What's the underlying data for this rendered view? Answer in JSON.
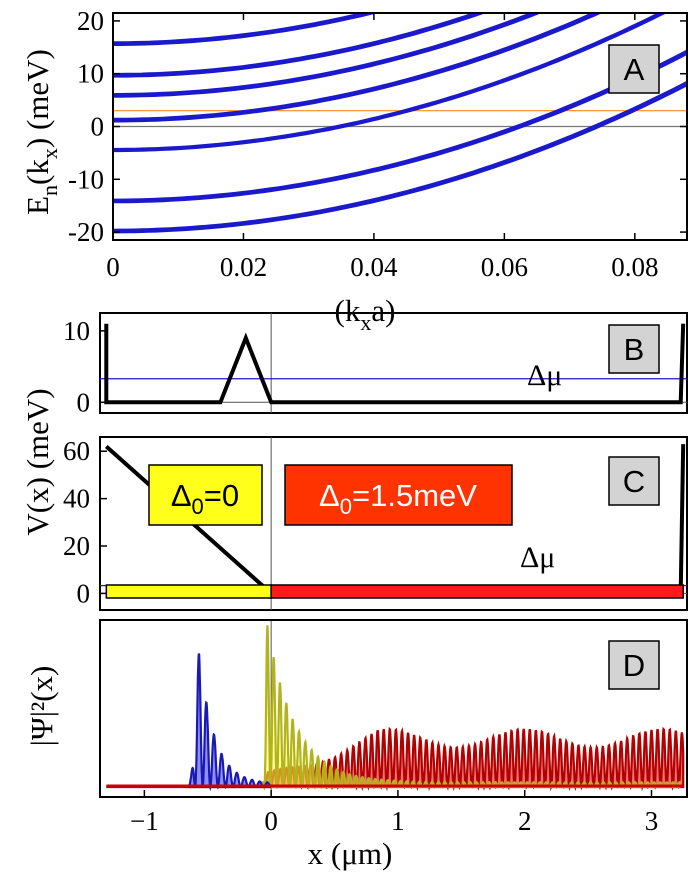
{
  "chart_data": [
    {
      "panel": "A",
      "type": "line",
      "xlabel_main": "(k",
      "xlabel_sub": "x",
      "xlabel_end": "a)",
      "ylabel_main": "E",
      "ylabel_sub1": "n",
      "ylabel_mid": "(k",
      "ylabel_sub2": "x",
      "ylabel_end": ")  (meV)",
      "xlim": [
        0,
        0.088
      ],
      "ylim": [
        -21.5,
        21.5
      ],
      "xticks": [
        0,
        0.02,
        0.04,
        0.06,
        0.08
      ],
      "xtick_labels": [
        "0",
        "0.02",
        "0.04",
        "0.06",
        "0.08"
      ],
      "yticks": [
        -20,
        -10,
        0,
        10,
        20
      ],
      "ytick_labels": [
        "-20",
        "-10",
        "0",
        "10",
        "20"
      ],
      "series_color": "#1a1acc",
      "band_offsets": [
        -20.0,
        -19.6,
        -14.3,
        -13.9,
        -4.6,
        -4.3,
        1.0,
        1.4,
        5.7,
        6.1,
        9.5,
        9.9,
        15.5,
        15.9
      ],
      "band_curvature": 3600,
      "horizontal_lines": [
        {
          "y": 3.0,
          "color": "#ff8c1a"
        },
        {
          "y": 0.0,
          "color": "#777777"
        }
      ]
    },
    {
      "panel": "B",
      "type": "line",
      "xlim": [
        -1.35,
        3.28
      ],
      "ylim": [
        -1.5,
        12.5
      ],
      "yticks": [
        0,
        10
      ],
      "ytick_labels": [
        "0",
        "10"
      ],
      "potential": [
        [
          -1.3,
          11
        ],
        [
          -1.3,
          0
        ],
        [
          -0.4,
          0
        ],
        [
          -0.2,
          9
        ],
        [
          0.0,
          0
        ],
        [
          3.23,
          0
        ],
        [
          3.25,
          11
        ]
      ],
      "delta_mu": 3.3,
      "delta_mu_label": "Δμ"
    },
    {
      "panel": "C",
      "type": "line",
      "ylabel": "V(x)  (meV)",
      "xlim": [
        -1.35,
        3.28
      ],
      "ylim": [
        -7,
        66
      ],
      "yticks": [
        0,
        20,
        40,
        60
      ],
      "ytick_labels": [
        "0",
        "20",
        "40",
        "60"
      ],
      "potential": [
        [
          -1.3,
          62
        ],
        [
          0.0,
          0
        ],
        [
          3.23,
          0
        ],
        [
          3.25,
          63
        ]
      ],
      "delta_mu": 3.3,
      "delta_mu_label": "Δμ",
      "regions": [
        {
          "x0": -1.3,
          "x1": 0.0,
          "color": "#ffff1a",
          "label_main": "Δ",
          "label_sub": "0",
          "label_end": "=0"
        },
        {
          "x0": 0.0,
          "x1": 3.25,
          "color": "#ff1a1a",
          "label_main": "Δ",
          "label_sub": "0",
          "label_end": "=1.5meV"
        }
      ]
    },
    {
      "panel": "D",
      "type": "line",
      "ylabel": "|Ψ|²(x)",
      "xlabel": "x (μm)",
      "xlim": [
        -1.35,
        3.28
      ],
      "xticks": [
        -1,
        0,
        1,
        2,
        3
      ],
      "xtick_labels": [
        "−1",
        "0",
        "1",
        "2",
        "3"
      ],
      "series": [
        {
          "color": "#1a1ab3",
          "fill": "#3333ff",
          "peak_x": -0.57,
          "peak": 0.85,
          "start": -0.65,
          "decay": 0.12,
          "period": 0.06,
          "end": 0.0
        },
        {
          "color": "#b3b31a",
          "fill": "#ffff4d",
          "peak_x": -0.03,
          "peak": 1.0,
          "start": -0.08,
          "decay": 0.22,
          "period": 0.05,
          "end": 3.22
        },
        {
          "color": "#b30000",
          "fill": "#e60000",
          "base": 0.16,
          "period": 0.048,
          "start": -1.3,
          "end": 3.25
        }
      ]
    }
  ]
}
